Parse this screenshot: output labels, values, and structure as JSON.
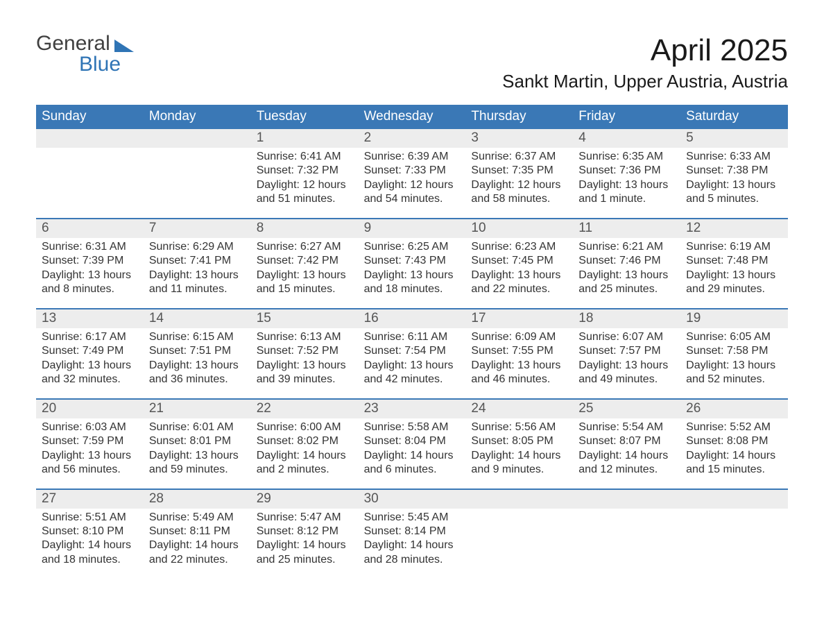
{
  "logo": {
    "word1": "General",
    "word2": "Blue"
  },
  "title": "April 2025",
  "location": "Sankt Martin, Upper Austria, Austria",
  "colors": {
    "header_bg": "#3a78b6",
    "header_text": "#ffffff",
    "num_row_bg": "#ededed",
    "row_border": "#3a78b6",
    "body_text": "#333333",
    "logo_accent": "#2f74b5"
  },
  "day_names": [
    "Sunday",
    "Monday",
    "Tuesday",
    "Wednesday",
    "Thursday",
    "Friday",
    "Saturday"
  ],
  "weeks": [
    [
      {
        "n": "",
        "sr": "",
        "ss": "",
        "dl": ""
      },
      {
        "n": "",
        "sr": "",
        "ss": "",
        "dl": ""
      },
      {
        "n": "1",
        "sr": "Sunrise: 6:41 AM",
        "ss": "Sunset: 7:32 PM",
        "dl": "Daylight: 12 hours and 51 minutes."
      },
      {
        "n": "2",
        "sr": "Sunrise: 6:39 AM",
        "ss": "Sunset: 7:33 PM",
        "dl": "Daylight: 12 hours and 54 minutes."
      },
      {
        "n": "3",
        "sr": "Sunrise: 6:37 AM",
        "ss": "Sunset: 7:35 PM",
        "dl": "Daylight: 12 hours and 58 minutes."
      },
      {
        "n": "4",
        "sr": "Sunrise: 6:35 AM",
        "ss": "Sunset: 7:36 PM",
        "dl": "Daylight: 13 hours and 1 minute."
      },
      {
        "n": "5",
        "sr": "Sunrise: 6:33 AM",
        "ss": "Sunset: 7:38 PM",
        "dl": "Daylight: 13 hours and 5 minutes."
      }
    ],
    [
      {
        "n": "6",
        "sr": "Sunrise: 6:31 AM",
        "ss": "Sunset: 7:39 PM",
        "dl": "Daylight: 13 hours and 8 minutes."
      },
      {
        "n": "7",
        "sr": "Sunrise: 6:29 AM",
        "ss": "Sunset: 7:41 PM",
        "dl": "Daylight: 13 hours and 11 minutes."
      },
      {
        "n": "8",
        "sr": "Sunrise: 6:27 AM",
        "ss": "Sunset: 7:42 PM",
        "dl": "Daylight: 13 hours and 15 minutes."
      },
      {
        "n": "9",
        "sr": "Sunrise: 6:25 AM",
        "ss": "Sunset: 7:43 PM",
        "dl": "Daylight: 13 hours and 18 minutes."
      },
      {
        "n": "10",
        "sr": "Sunrise: 6:23 AM",
        "ss": "Sunset: 7:45 PM",
        "dl": "Daylight: 13 hours and 22 minutes."
      },
      {
        "n": "11",
        "sr": "Sunrise: 6:21 AM",
        "ss": "Sunset: 7:46 PM",
        "dl": "Daylight: 13 hours and 25 minutes."
      },
      {
        "n": "12",
        "sr": "Sunrise: 6:19 AM",
        "ss": "Sunset: 7:48 PM",
        "dl": "Daylight: 13 hours and 29 minutes."
      }
    ],
    [
      {
        "n": "13",
        "sr": "Sunrise: 6:17 AM",
        "ss": "Sunset: 7:49 PM",
        "dl": "Daylight: 13 hours and 32 minutes."
      },
      {
        "n": "14",
        "sr": "Sunrise: 6:15 AM",
        "ss": "Sunset: 7:51 PM",
        "dl": "Daylight: 13 hours and 36 minutes."
      },
      {
        "n": "15",
        "sr": "Sunrise: 6:13 AM",
        "ss": "Sunset: 7:52 PM",
        "dl": "Daylight: 13 hours and 39 minutes."
      },
      {
        "n": "16",
        "sr": "Sunrise: 6:11 AM",
        "ss": "Sunset: 7:54 PM",
        "dl": "Daylight: 13 hours and 42 minutes."
      },
      {
        "n": "17",
        "sr": "Sunrise: 6:09 AM",
        "ss": "Sunset: 7:55 PM",
        "dl": "Daylight: 13 hours and 46 minutes."
      },
      {
        "n": "18",
        "sr": "Sunrise: 6:07 AM",
        "ss": "Sunset: 7:57 PM",
        "dl": "Daylight: 13 hours and 49 minutes."
      },
      {
        "n": "19",
        "sr": "Sunrise: 6:05 AM",
        "ss": "Sunset: 7:58 PM",
        "dl": "Daylight: 13 hours and 52 minutes."
      }
    ],
    [
      {
        "n": "20",
        "sr": "Sunrise: 6:03 AM",
        "ss": "Sunset: 7:59 PM",
        "dl": "Daylight: 13 hours and 56 minutes."
      },
      {
        "n": "21",
        "sr": "Sunrise: 6:01 AM",
        "ss": "Sunset: 8:01 PM",
        "dl": "Daylight: 13 hours and 59 minutes."
      },
      {
        "n": "22",
        "sr": "Sunrise: 6:00 AM",
        "ss": "Sunset: 8:02 PM",
        "dl": "Daylight: 14 hours and 2 minutes."
      },
      {
        "n": "23",
        "sr": "Sunrise: 5:58 AM",
        "ss": "Sunset: 8:04 PM",
        "dl": "Daylight: 14 hours and 6 minutes."
      },
      {
        "n": "24",
        "sr": "Sunrise: 5:56 AM",
        "ss": "Sunset: 8:05 PM",
        "dl": "Daylight: 14 hours and 9 minutes."
      },
      {
        "n": "25",
        "sr": "Sunrise: 5:54 AM",
        "ss": "Sunset: 8:07 PM",
        "dl": "Daylight: 14 hours and 12 minutes."
      },
      {
        "n": "26",
        "sr": "Sunrise: 5:52 AM",
        "ss": "Sunset: 8:08 PM",
        "dl": "Daylight: 14 hours and 15 minutes."
      }
    ],
    [
      {
        "n": "27",
        "sr": "Sunrise: 5:51 AM",
        "ss": "Sunset: 8:10 PM",
        "dl": "Daylight: 14 hours and 18 minutes."
      },
      {
        "n": "28",
        "sr": "Sunrise: 5:49 AM",
        "ss": "Sunset: 8:11 PM",
        "dl": "Daylight: 14 hours and 22 minutes."
      },
      {
        "n": "29",
        "sr": "Sunrise: 5:47 AM",
        "ss": "Sunset: 8:12 PM",
        "dl": "Daylight: 14 hours and 25 minutes."
      },
      {
        "n": "30",
        "sr": "Sunrise: 5:45 AM",
        "ss": "Sunset: 8:14 PM",
        "dl": "Daylight: 14 hours and 28 minutes."
      },
      {
        "n": "",
        "sr": "",
        "ss": "",
        "dl": ""
      },
      {
        "n": "",
        "sr": "",
        "ss": "",
        "dl": ""
      },
      {
        "n": "",
        "sr": "",
        "ss": "",
        "dl": ""
      }
    ]
  ]
}
